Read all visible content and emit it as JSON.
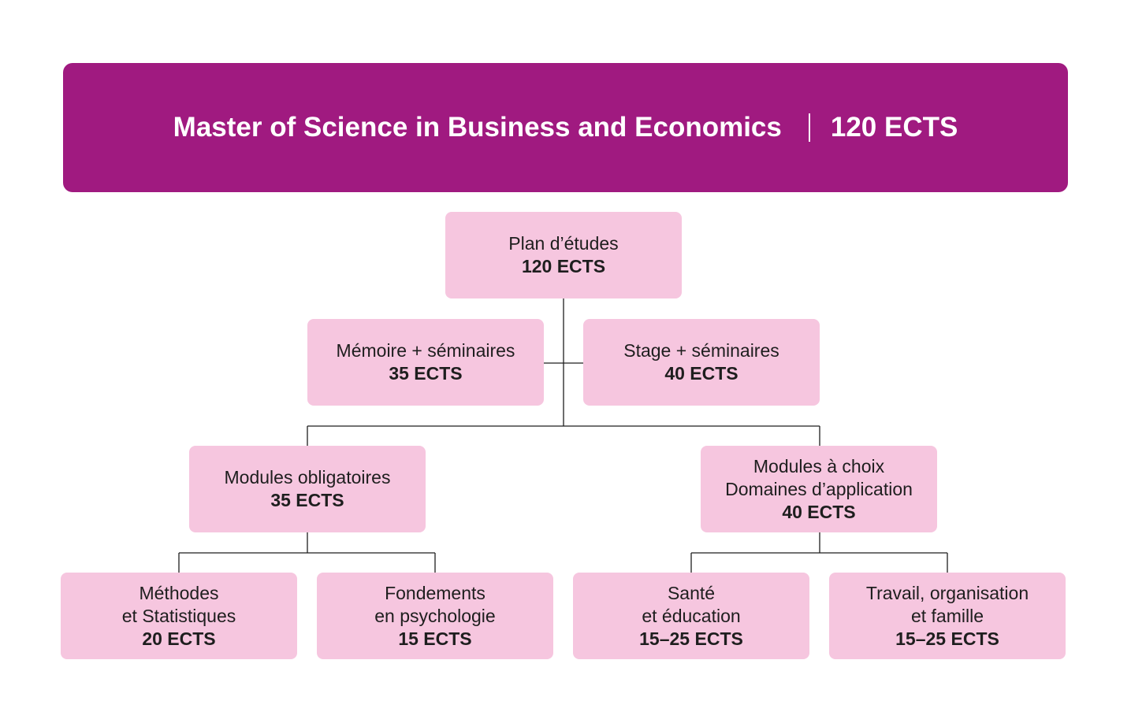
{
  "banner": {
    "title": "Master of Science in Business and Economics",
    "credits": "120 ECTS",
    "background_color": "#a01a80"
  },
  "node_color": "#f6c6df",
  "nodes": {
    "plan": {
      "lines": [
        "Plan d’études"
      ],
      "ects": "120 ECTS"
    },
    "memoire": {
      "lines": [
        "Mémoire + séminaires"
      ],
      "ects": "35 ECTS"
    },
    "stage": {
      "lines": [
        "Stage + séminaires"
      ],
      "ects": "40 ECTS"
    },
    "obligatoires": {
      "lines": [
        "Modules obligatoires"
      ],
      "ects": "35 ECTS"
    },
    "choix": {
      "lines": [
        "Modules à choix",
        "Domaines d’application"
      ],
      "ects": "40 ECTS"
    },
    "methodes": {
      "lines": [
        "Méthodes",
        "et Statistiques"
      ],
      "ects": "20 ECTS"
    },
    "fondements": {
      "lines": [
        "Fondements",
        "en psychologie"
      ],
      "ects": "15 ECTS"
    },
    "sante": {
      "lines": [
        "Santé",
        "et éducation"
      ],
      "ects": "15–25 ECTS"
    },
    "travail": {
      "lines": [
        "Travail, organisation",
        "et famille"
      ],
      "ects": "15–25 ECTS"
    }
  }
}
